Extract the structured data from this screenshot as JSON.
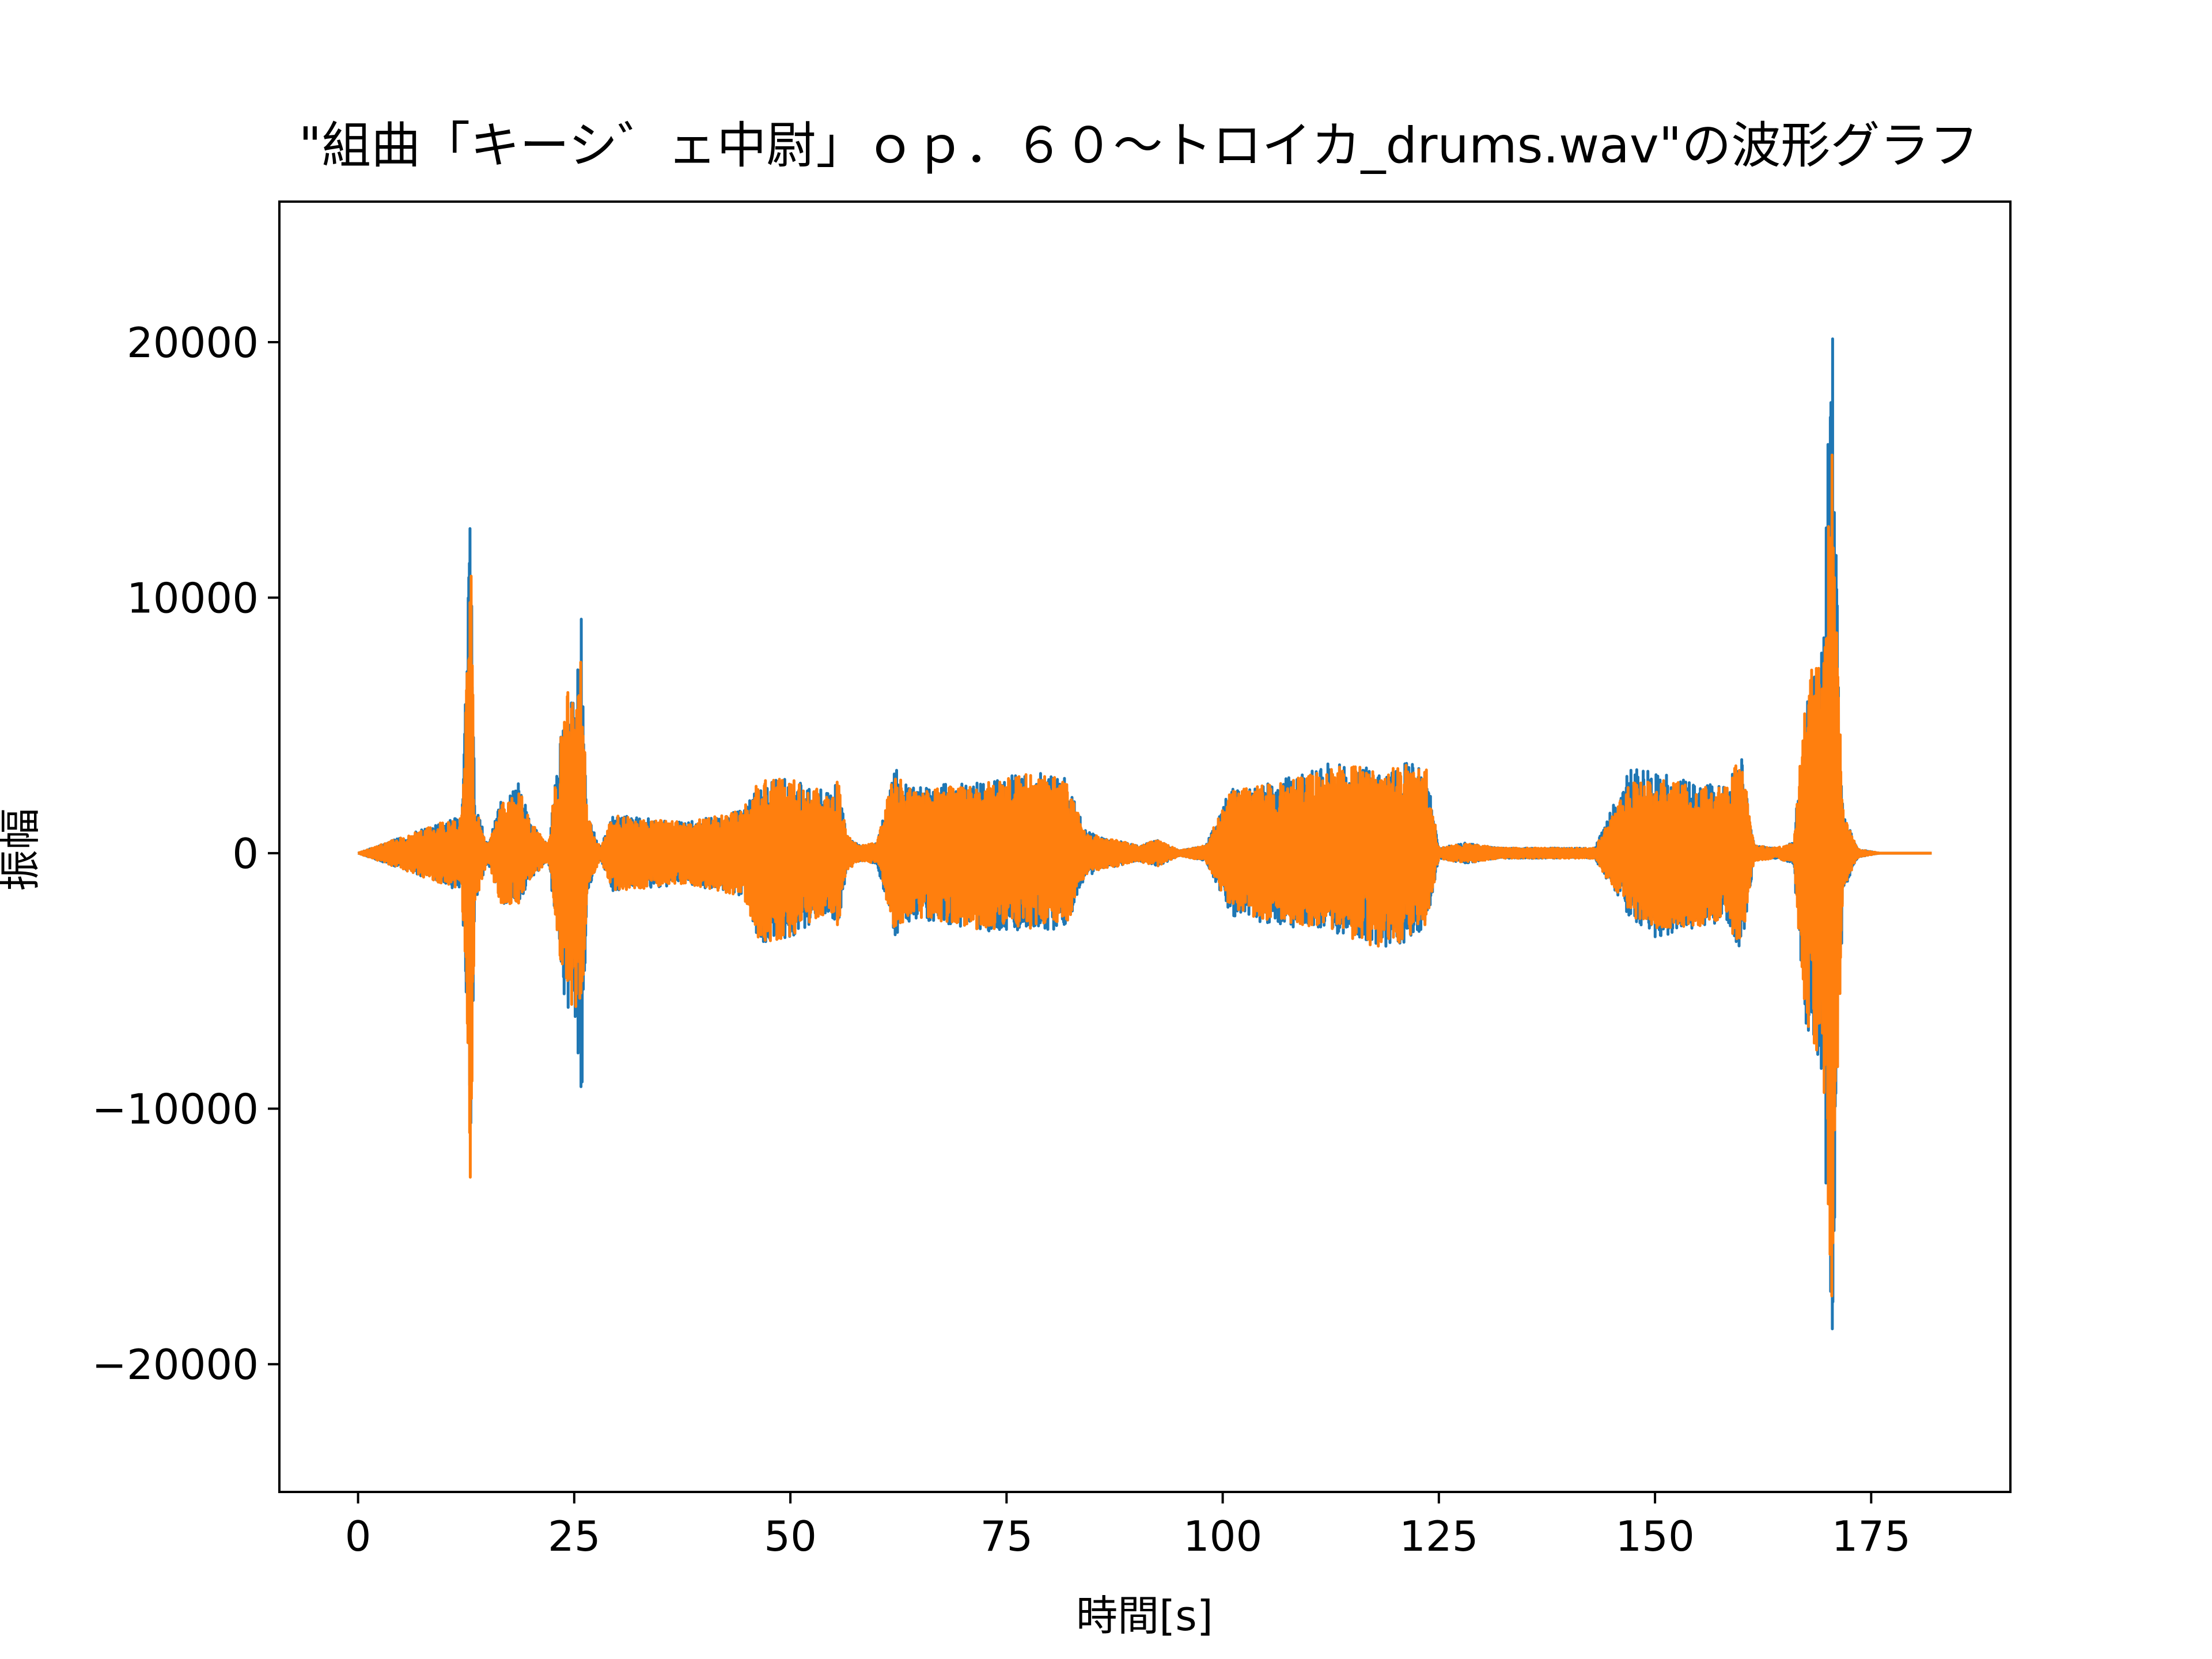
{
  "chart_data": {
    "type": "line",
    "title": "\"組曲「キーシ゛ェ中尉」ｏｐ．６０～トロイカ_drums.wav\"の波形グラフ",
    "xlabel": "時間[s]",
    "ylabel": "振幅",
    "xlim": [
      -9.1,
      191.1
    ],
    "ylim": [
      -25000,
      25500
    ],
    "xticks": [
      0,
      25,
      50,
      75,
      100,
      125,
      150,
      175
    ],
    "xtick_labels": [
      "0",
      "25",
      "50",
      "75",
      "100",
      "125",
      "150",
      "175"
    ],
    "yticks": [
      20000,
      10000,
      0,
      -10000,
      -20000
    ],
    "ytick_labels": [
      "20000",
      "10000",
      "0",
      "−10000",
      "−20000"
    ],
    "grid": false,
    "legend": "none",
    "colors": {
      "channel_1": "#1f77b4",
      "channel_2": "#ff7f0e"
    },
    "duration": 182,
    "series": [
      {
        "envelope": [
          [
            0,
            0
          ],
          [
            12.0,
            1500
          ],
          [
            12.6,
            8200
          ],
          [
            13.0,
            13800
          ],
          [
            13.5,
            2000
          ],
          [
            15,
            300
          ],
          [
            16.5,
            2000
          ],
          [
            18.5,
            2800
          ],
          [
            20,
            1200
          ],
          [
            22,
            300
          ],
          [
            24.0,
            6500
          ],
          [
            25.2,
            6200
          ],
          [
            25.8,
            10500
          ],
          [
            26.5,
            1500
          ],
          [
            28,
            200
          ],
          [
            29.5,
            1500
          ],
          [
            33,
            1400
          ],
          [
            38,
            1200
          ],
          [
            42,
            1500
          ],
          [
            44.5,
            1700
          ],
          [
            46.5,
            2900
          ],
          [
            50,
            2900
          ],
          [
            53,
            2600
          ],
          [
            54.5,
            2300
          ],
          [
            55.5,
            3000
          ],
          [
            56.5,
            700
          ],
          [
            58,
            300
          ],
          [
            60,
            400
          ],
          [
            62.0,
            3500
          ],
          [
            64,
            2600
          ],
          [
            68,
            2700
          ],
          [
            72,
            2800
          ],
          [
            76,
            3100
          ],
          [
            79,
            3200
          ],
          [
            82,
            2900
          ],
          [
            84,
            1000
          ],
          [
            86,
            600
          ],
          [
            88,
            500
          ],
          [
            90,
            300
          ],
          [
            92.5,
            500
          ],
          [
            95,
            100
          ],
          [
            98,
            300
          ],
          [
            101,
            2600
          ],
          [
            104,
            2600
          ],
          [
            108,
            3000
          ],
          [
            112,
            3500
          ],
          [
            116,
            3400
          ],
          [
            118,
            3200
          ],
          [
            121,
            3600
          ],
          [
            123.5,
            3500
          ],
          [
            125,
            200
          ],
          [
            128,
            400
          ],
          [
            132,
            200
          ],
          [
            138,
            200
          ],
          [
            143,
            200
          ],
          [
            147,
            3300
          ],
          [
            150,
            3200
          ],
          [
            154,
            2800
          ],
          [
            158,
            2600
          ],
          [
            160,
            3900
          ],
          [
            161.5,
            300
          ],
          [
            164,
            200
          ],
          [
            166,
            400
          ],
          [
            167.5,
            6000
          ],
          [
            168.5,
            8300
          ],
          [
            169.5,
            8200
          ],
          [
            170.4,
            23200
          ],
          [
            171.0,
            11000
          ],
          [
            171.8,
            1500
          ],
          [
            173.5,
            150
          ],
          [
            176,
            0
          ],
          [
            182,
            0
          ]
        ],
        "envelope_neg": [
          [
            0,
            0
          ],
          [
            12.0,
            -1500
          ],
          [
            12.6,
            -7800
          ],
          [
            13.0,
            -14000
          ],
          [
            13.5,
            -2000
          ],
          [
            15,
            -300
          ],
          [
            16.5,
            -2000
          ],
          [
            18.5,
            -2000
          ],
          [
            20,
            -1000
          ],
          [
            22,
            -300
          ],
          [
            24.0,
            -6000
          ],
          [
            25.2,
            -6500
          ],
          [
            25.8,
            -10500
          ],
          [
            26.5,
            -1500
          ],
          [
            28,
            -200
          ],
          [
            29.5,
            -1500
          ],
          [
            33,
            -1400
          ],
          [
            38,
            -1200
          ],
          [
            42,
            -1500
          ],
          [
            44.5,
            -1700
          ],
          [
            46.5,
            -3500
          ],
          [
            50,
            -3300
          ],
          [
            53,
            -2600
          ],
          [
            54.5,
            -2300
          ],
          [
            55.5,
            -3000
          ],
          [
            56.5,
            -700
          ],
          [
            58,
            -300
          ],
          [
            60,
            -400
          ],
          [
            62.0,
            -3300
          ],
          [
            64,
            -2600
          ],
          [
            68,
            -2800
          ],
          [
            72,
            -3100
          ],
          [
            76,
            -3000
          ],
          [
            79,
            -3100
          ],
          [
            82,
            -2900
          ],
          [
            84,
            -1000
          ],
          [
            86,
            -600
          ],
          [
            88,
            -500
          ],
          [
            90,
            -300
          ],
          [
            92.5,
            -500
          ],
          [
            95,
            -100
          ],
          [
            98,
            -300
          ],
          [
            101,
            -2500
          ],
          [
            104,
            -2700
          ],
          [
            108,
            -2900
          ],
          [
            112,
            -3000
          ],
          [
            116,
            -3500
          ],
          [
            118,
            -3700
          ],
          [
            121,
            -3600
          ],
          [
            123.5,
            -3000
          ],
          [
            125,
            -200
          ],
          [
            128,
            -400
          ],
          [
            132,
            -200
          ],
          [
            138,
            -200
          ],
          [
            143,
            -200
          ],
          [
            147,
            -2500
          ],
          [
            150,
            -3300
          ],
          [
            154,
            -3000
          ],
          [
            158,
            -2800
          ],
          [
            160,
            -3800
          ],
          [
            161.5,
            -300
          ],
          [
            164,
            -200
          ],
          [
            166,
            -400
          ],
          [
            167.5,
            -7000
          ],
          [
            168.5,
            -8000
          ],
          [
            169.5,
            -9500
          ],
          [
            170.4,
            -23000
          ],
          [
            171.0,
            -11000
          ],
          [
            171.8,
            -1500
          ],
          [
            173.5,
            -150
          ],
          [
            176,
            0
          ],
          [
            182,
            0
          ]
        ]
      },
      {
        "envelope": [
          [
            0,
            0
          ],
          [
            12.0,
            1500
          ],
          [
            12.6,
            8000
          ],
          [
            13.0,
            13700
          ],
          [
            13.5,
            2000
          ],
          [
            15,
            300
          ],
          [
            16.5,
            1900
          ],
          [
            18.5,
            2700
          ],
          [
            20,
            1200
          ],
          [
            22,
            300
          ],
          [
            24.0,
            6500
          ],
          [
            25.2,
            5800
          ],
          [
            25.8,
            8000
          ],
          [
            26.5,
            1500
          ],
          [
            28,
            200
          ],
          [
            29.5,
            1500
          ],
          [
            33,
            1400
          ],
          [
            38,
            1200
          ],
          [
            42,
            1500
          ],
          [
            44.5,
            1700
          ],
          [
            46.5,
            2900
          ],
          [
            50,
            2900
          ],
          [
            53,
            2600
          ],
          [
            54.5,
            2300
          ],
          [
            55.5,
            2900
          ],
          [
            56.5,
            700
          ],
          [
            58,
            300
          ],
          [
            60,
            400
          ],
          [
            62.0,
            3200
          ],
          [
            64,
            2500
          ],
          [
            68,
            2600
          ],
          [
            72,
            2700
          ],
          [
            76,
            3000
          ],
          [
            79,
            3200
          ],
          [
            82,
            2800
          ],
          [
            84,
            900
          ],
          [
            86,
            600
          ],
          [
            88,
            500
          ],
          [
            90,
            300
          ],
          [
            92.5,
            500
          ],
          [
            95,
            100
          ],
          [
            98,
            300
          ],
          [
            101,
            2500
          ],
          [
            104,
            2600
          ],
          [
            108,
            2900
          ],
          [
            112,
            3400
          ],
          [
            116,
            3400
          ],
          [
            118,
            3200
          ],
          [
            121,
            3500
          ],
          [
            123.5,
            3400
          ],
          [
            125,
            200
          ],
          [
            128,
            400
          ],
          [
            132,
            200
          ],
          [
            138,
            200
          ],
          [
            143,
            200
          ],
          [
            147,
            2700
          ],
          [
            150,
            3000
          ],
          [
            154,
            2700
          ],
          [
            158,
            2600
          ],
          [
            160,
            3900
          ],
          [
            161.5,
            300
          ],
          [
            164,
            200
          ],
          [
            166,
            400
          ],
          [
            167.5,
            6300
          ],
          [
            168.5,
            7800
          ],
          [
            169.5,
            7800
          ],
          [
            170.4,
            18700
          ],
          [
            171.0,
            9000
          ],
          [
            171.8,
            1500
          ],
          [
            173.5,
            150
          ],
          [
            176,
            0
          ],
          [
            182,
            0
          ]
        ],
        "envelope_neg": [
          [
            0,
            0
          ],
          [
            12.0,
            -1500
          ],
          [
            12.6,
            -7800
          ],
          [
            13.0,
            -14000
          ],
          [
            13.5,
            -2000
          ],
          [
            15,
            -300
          ],
          [
            16.5,
            -2000
          ],
          [
            18.5,
            -2000
          ],
          [
            20,
            -1000
          ],
          [
            22,
            -300
          ],
          [
            24.0,
            -5800
          ],
          [
            25.2,
            -6200
          ],
          [
            25.8,
            -6800
          ],
          [
            26.5,
            -1500
          ],
          [
            28,
            -200
          ],
          [
            29.5,
            -1500
          ],
          [
            33,
            -1400
          ],
          [
            38,
            -1200
          ],
          [
            42,
            -1500
          ],
          [
            44.5,
            -1700
          ],
          [
            46.5,
            -3500
          ],
          [
            50,
            -3300
          ],
          [
            53,
            -2600
          ],
          [
            54.5,
            -2300
          ],
          [
            55.5,
            -2900
          ],
          [
            56.5,
            -700
          ],
          [
            58,
            -300
          ],
          [
            60,
            -400
          ],
          [
            62.0,
            -3100
          ],
          [
            64,
            -2500
          ],
          [
            68,
            -2700
          ],
          [
            72,
            -3000
          ],
          [
            76,
            -2900
          ],
          [
            79,
            -3000
          ],
          [
            82,
            -2800
          ],
          [
            84,
            -900
          ],
          [
            86,
            -600
          ],
          [
            88,
            -500
          ],
          [
            90,
            -300
          ],
          [
            92.5,
            -500
          ],
          [
            95,
            -100
          ],
          [
            98,
            -300
          ],
          [
            101,
            -2400
          ],
          [
            104,
            -2600
          ],
          [
            108,
            -2800
          ],
          [
            112,
            -2900
          ],
          [
            116,
            -3500
          ],
          [
            118,
            -3700
          ],
          [
            121,
            -3500
          ],
          [
            123.5,
            -2900
          ],
          [
            125,
            -200
          ],
          [
            128,
            -400
          ],
          [
            132,
            -200
          ],
          [
            138,
            -200
          ],
          [
            143,
            -200
          ],
          [
            147,
            -2400
          ],
          [
            150,
            -3000
          ],
          [
            154,
            -2900
          ],
          [
            158,
            -2700
          ],
          [
            160,
            -3800
          ],
          [
            161.5,
            -300
          ],
          [
            164,
            -200
          ],
          [
            166,
            -400
          ],
          [
            167.5,
            -6800
          ],
          [
            168.5,
            -7800
          ],
          [
            169.5,
            -9200
          ],
          [
            170.4,
            -18000
          ],
          [
            171.0,
            -10000
          ],
          [
            171.8,
            -1500
          ],
          [
            173.5,
            -150
          ],
          [
            176,
            0
          ],
          [
            182,
            0
          ]
        ]
      }
    ]
  }
}
